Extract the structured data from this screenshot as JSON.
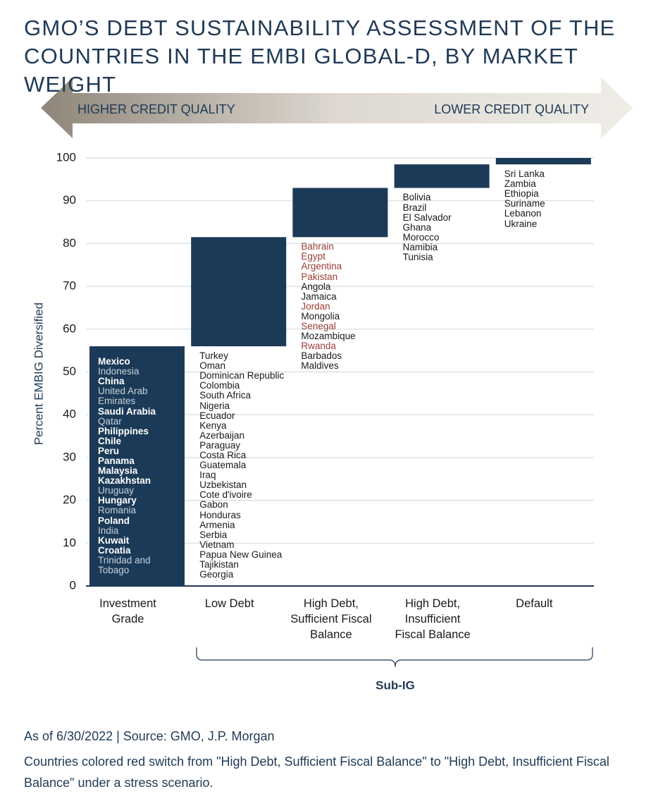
{
  "chart_data": {
    "type": "waterfall",
    "title": "GMO’S DEBT SUSTAINABILITY ASSESSMENT OF THE COUNTRIES IN THE EMBI GLOBAL-D, BY MARKET WEIGHT",
    "arrow_left": "HIGHER CREDIT QUALITY",
    "arrow_right": "LOWER CREDIT QUALITY",
    "y_label": "Percent EMBIG Diversified",
    "categories": [
      "Investment Grade",
      "Low Debt",
      "High Debt, Sufficient Fiscal Balance",
      "High Debt, Insufficient Fiscal Balance",
      "Default"
    ],
    "values": [
      56,
      25.5,
      11.5,
      5.5,
      1.5
    ],
    "color": "#1b3a57",
    "ylim": [
      0,
      100
    ],
    "yticks": [
      0,
      10,
      20,
      30,
      40,
      50,
      60,
      70,
      80,
      90,
      100
    ],
    "grid": true,
    "country_lists": [
      [
        {
          "name": "Mexico",
          "color": "#ffffff",
          "weight": "bold"
        },
        {
          "name": "Indonesia",
          "color": "#c6d2de"
        },
        {
          "name": "China",
          "color": "#ffffff",
          "weight": "bold"
        },
        {
          "name": "United Arab Emirates",
          "color": "#c6d2de"
        },
        {
          "name": "Saudi Arabia",
          "color": "#ffffff",
          "weight": "bold"
        },
        {
          "name": "Qatar",
          "color": "#c6d2de"
        },
        {
          "name": "Philippines",
          "color": "#ffffff",
          "weight": "bold"
        },
        {
          "name": "Chile",
          "color": "#ffffff",
          "weight": "bold"
        },
        {
          "name": "Peru",
          "color": "#ffffff",
          "weight": "bold"
        },
        {
          "name": "Panama",
          "color": "#ffffff",
          "weight": "bold"
        },
        {
          "name": "Malaysia",
          "color": "#ffffff",
          "weight": "bold"
        },
        {
          "name": "Kazakhstan",
          "color": "#ffffff",
          "weight": "bold"
        },
        {
          "name": "Uruguay",
          "color": "#c6d2de"
        },
        {
          "name": "Hungary",
          "color": "#ffffff",
          "weight": "bold"
        },
        {
          "name": "Romania",
          "color": "#c6d2de"
        },
        {
          "name": "Poland",
          "color": "#ffffff",
          "weight": "bold"
        },
        {
          "name": "India",
          "color": "#c6d2de"
        },
        {
          "name": "Kuwait",
          "color": "#ffffff",
          "weight": "bold"
        },
        {
          "name": "Croatia",
          "color": "#ffffff",
          "weight": "bold"
        },
        {
          "name": "Trinidad and Tobago",
          "color": "#c6d2de"
        }
      ],
      [
        {
          "name": "Turkey",
          "color": "#1a1a1a"
        },
        {
          "name": "Oman",
          "color": "#1a1a1a"
        },
        {
          "name": "Dominican Republic",
          "color": "#1a1a1a"
        },
        {
          "name": "Colombia",
          "color": "#1a1a1a"
        },
        {
          "name": "South Africa",
          "color": "#1a1a1a"
        },
        {
          "name": "Nigeria",
          "color": "#1a1a1a"
        },
        {
          "name": "Ecuador",
          "color": "#1a1a1a"
        },
        {
          "name": "Kenya",
          "color": "#1a1a1a"
        },
        {
          "name": "Azerbaijan",
          "color": "#1a1a1a"
        },
        {
          "name": "Paraguay",
          "color": "#1a1a1a"
        },
        {
          "name": "Costa Rica",
          "color": "#1a1a1a"
        },
        {
          "name": "Guatemala",
          "color": "#1a1a1a"
        },
        {
          "name": "Iraq",
          "color": "#1a1a1a"
        },
        {
          "name": "Uzbekistan",
          "color": "#1a1a1a"
        },
        {
          "name": "Cote d'ivoire",
          "color": "#1a1a1a"
        },
        {
          "name": "Gabon",
          "color": "#1a1a1a"
        },
        {
          "name": "Honduras",
          "color": "#1a1a1a"
        },
        {
          "name": "Armenia",
          "color": "#1a1a1a"
        },
        {
          "name": "Serbia",
          "color": "#1a1a1a"
        },
        {
          "name": "Vietnam",
          "color": "#1a1a1a"
        },
        {
          "name": "Papua New Guinea",
          "color": "#1a1a1a"
        },
        {
          "name": "Tajikistan",
          "color": "#1a1a1a"
        },
        {
          "name": "Georgia",
          "color": "#1a1a1a"
        }
      ],
      [
        {
          "name": "Bahrain",
          "color": "#9b3d33"
        },
        {
          "name": "Egypt",
          "color": "#9b3d33"
        },
        {
          "name": "Argentina",
          "color": "#9b3d33"
        },
        {
          "name": "Pakistan",
          "color": "#9b3d33"
        },
        {
          "name": "Angola",
          "color": "#1a1a1a"
        },
        {
          "name": "Jamaica",
          "color": "#1a1a1a"
        },
        {
          "name": "Jordan",
          "color": "#9b3d33"
        },
        {
          "name": "Mongolia",
          "color": "#1a1a1a"
        },
        {
          "name": "Senegal",
          "color": "#9b3d33"
        },
        {
          "name": "Mozambique",
          "color": "#1a1a1a"
        },
        {
          "name": "Rwanda",
          "color": "#9b3d33"
        },
        {
          "name": "Barbados",
          "color": "#1a1a1a"
        },
        {
          "name": "Maldives",
          "color": "#1a1a1a"
        }
      ],
      [
        {
          "name": "Bolivia",
          "color": "#1a1a1a"
        },
        {
          "name": "Brazil",
          "color": "#1a1a1a"
        },
        {
          "name": "El Salvador",
          "color": "#1a1a1a"
        },
        {
          "name": "Ghana",
          "color": "#1a1a1a"
        },
        {
          "name": "Morocco",
          "color": "#1a1a1a"
        },
        {
          "name": "Namibia",
          "color": "#1a1a1a"
        },
        {
          "name": "Tunisia",
          "color": "#1a1a1a"
        }
      ],
      [
        {
          "name": "Sri Lanka",
          "color": "#1a1a1a"
        },
        {
          "name": "Zambia",
          "color": "#1a1a1a"
        },
        {
          "name": "Ethiopia",
          "color": "#1a1a1a"
        },
        {
          "name": "Suriname",
          "color": "#1a1a1a"
        },
        {
          "name": "Lebanon",
          "color": "#1a1a1a"
        },
        {
          "name": "Ukraine",
          "color": "#1a1a1a"
        }
      ]
    ],
    "bracket_label": "Sub-IG",
    "source": "As of 6/30/2022 | Source: GMO, J.P. Morgan",
    "note": "Countries colored red switch from \"High Debt, Sufficient Fiscal Balance\" to \"High Debt, Insufficient Fiscal Balance\" under a stress scenario."
  }
}
